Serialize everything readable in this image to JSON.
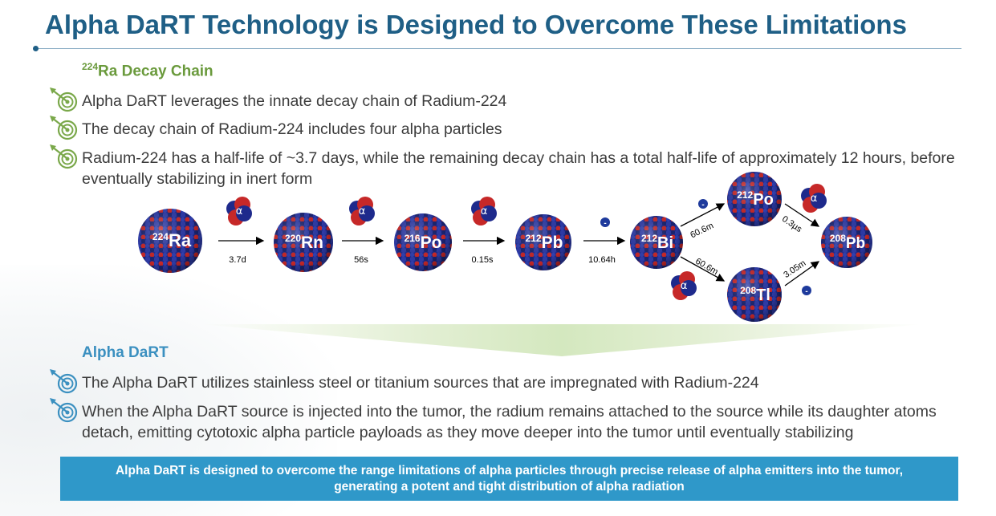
{
  "title": "Alpha DaRT Technology is Designed to Overcome These Limitations",
  "section1": {
    "heading_sup": "224",
    "heading_text": "Ra Decay Chain",
    "bullets": [
      "Alpha DaRT leverages the innate decay chain of Radium-224",
      "The decay chain of Radium-224 includes four alpha particles",
      "Radium-224 has a half-life of ~3.7 days, while the remaining decay chain has a total half-life of approximately 12 hours, before eventually stabilizing in inert form"
    ]
  },
  "diagram": {
    "nuclei": [
      {
        "mass": "224",
        "symbol": "Ra"
      },
      {
        "mass": "220",
        "symbol": "Rn"
      },
      {
        "mass": "216",
        "symbol": "Po"
      },
      {
        "mass": "212",
        "symbol": "Pb"
      },
      {
        "mass": "212",
        "symbol": "Bi"
      },
      {
        "mass": "212",
        "symbol": "Po"
      },
      {
        "mass": "208",
        "symbol": "Tl"
      },
      {
        "mass": "208",
        "symbol": "Pb"
      }
    ],
    "half_lives": [
      "3.7d",
      "56s",
      "0.15s",
      "10.64h",
      "60.6m",
      "60.6m",
      "0.3µs",
      "3.05m"
    ],
    "alpha_symbol": "α",
    "beta_symbol": "-",
    "colors": {
      "proton": "#c62828",
      "neutron": "#1e2a8c",
      "arrow": "#000000"
    }
  },
  "section2": {
    "heading": "Alpha DaRT",
    "bullets": [
      "The Alpha DaRT utilizes stainless steel or titanium sources that are impregnated with Radium-224",
      "When the Alpha DaRT source is injected into the tumor, the radium remains attached to the source while its daughter atoms detach, emitting cytotoxic alpha particle payloads as they move deeper into the tumor until eventually stabilizing"
    ]
  },
  "callout": "Alpha DaRT is designed to overcome the range limitations of alpha particles through precise release of alpha emitters into the tumor, generating a potent and tight distribution of alpha radiation",
  "colors": {
    "title": "#1f5f86",
    "green_head": "#6a9a3c",
    "blue_head": "#3b90c0",
    "callout_bg": "#2f98c9",
    "text": "#3c3c3c"
  }
}
